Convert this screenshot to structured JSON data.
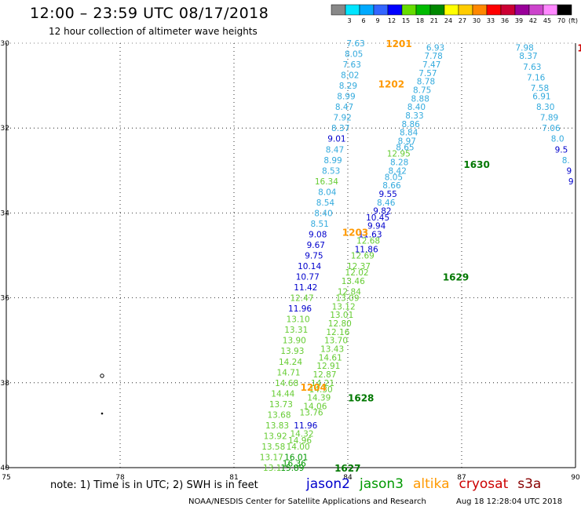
{
  "title": "12:00 – 23:59 UTC 08/17/2018",
  "subtitle": "12 hour collection of altimeter wave heights",
  "note": "note:  1) Time is in UTC;  2) SWH is in feet",
  "satellites": [
    {
      "name": "jason2",
      "color": "#0000cc"
    },
    {
      "name": "jason3",
      "color": "#009900"
    },
    {
      "name": "altika",
      "color": "#ff9900"
    },
    {
      "name": "cryosat",
      "color": "#cc0000"
    },
    {
      "name": "s3a",
      "color": "#880000"
    }
  ],
  "footer": "NOAA/NESDIS Center for Satellite Applications and Research",
  "footer_time": "Aug 18 12:28:04 UTC 2018",
  "scale": {
    "unit": "(ft)",
    "values": [
      "3",
      "6",
      "9",
      "12",
      "15",
      "18",
      "21",
      "24",
      "27",
      "30",
      "33",
      "36",
      "39",
      "42",
      "45",
      "70"
    ],
    "colors": [
      "#888888",
      "#00e5ff",
      "#00aaff",
      "#3366ff",
      "#0000ff",
      "#66dd00",
      "#00bb00",
      "#008800",
      "#ffff00",
      "#ffcc00",
      "#ff8800",
      "#ff0000",
      "#cc0033",
      "#990099",
      "#cc44cc",
      "#ff88ff",
      "#000000"
    ]
  },
  "axes": {
    "lat_labels": [
      "-30",
      "-32",
      "-34",
      "-36",
      "-38",
      "-40"
    ],
    "lon_labels": [
      "75",
      "78",
      "81",
      "84",
      "87",
      "90"
    ]
  },
  "color_key": {
    "lightblue": "#33aadd",
    "blue": "#0000cc",
    "lightgreen": "#66cc33",
    "green": "#009900",
    "orange": "#ff9900",
    "darkgreen": "#007700"
  },
  "tracks": [
    {
      "name": "track-1201-1204",
      "values": [
        {
          "v": "7.63",
          "lon": 84.45,
          "lat": -30.0,
          "c": "lightblue"
        },
        {
          "v": "8.05",
          "lon": 84.4,
          "lat": -30.25,
          "c": "lightblue"
        },
        {
          "v": "7.63",
          "lon": 84.35,
          "lat": -30.5,
          "c": "lightblue"
        },
        {
          "v": "8.02",
          "lon": 84.3,
          "lat": -30.75,
          "c": "lightblue"
        },
        {
          "v": "8.29",
          "lon": 84.25,
          "lat": -31.0,
          "c": "lightblue"
        },
        {
          "v": "8.99",
          "lon": 84.2,
          "lat": -31.25,
          "c": "lightblue"
        },
        {
          "v": "8.47",
          "lon": 84.15,
          "lat": -31.5,
          "c": "lightblue"
        },
        {
          "v": "7.92",
          "lon": 84.1,
          "lat": -31.75,
          "c": "lightblue"
        },
        {
          "v": "8.37",
          "lon": 84.05,
          "lat": -32.0,
          "c": "lightblue"
        },
        {
          "v": "9.01",
          "lon": 83.95,
          "lat": -32.25,
          "c": "blue"
        },
        {
          "v": "8.47",
          "lon": 83.9,
          "lat": -32.5,
          "c": "lightblue"
        },
        {
          "v": "8.99",
          "lon": 83.85,
          "lat": -32.75,
          "c": "lightblue"
        },
        {
          "v": "8.53",
          "lon": 83.8,
          "lat": -33.0,
          "c": "lightblue"
        },
        {
          "v": "16.34",
          "lon": 83.75,
          "lat": -33.25,
          "c": "lightgreen"
        },
        {
          "v": "8.04",
          "lon": 83.7,
          "lat": -33.5,
          "c": "lightblue"
        },
        {
          "v": "8.54",
          "lon": 83.65,
          "lat": -33.75,
          "c": "lightblue"
        },
        {
          "v": "8.40",
          "lon": 83.6,
          "lat": -34.0,
          "c": "lightblue"
        },
        {
          "v": "8.51",
          "lon": 83.5,
          "lat": -34.25,
          "c": "lightblue"
        },
        {
          "v": "9.08",
          "lon": 83.45,
          "lat": -34.5,
          "c": "blue"
        },
        {
          "v": "9.67",
          "lon": 83.4,
          "lat": -34.75,
          "c": "blue"
        },
        {
          "v": "9.75",
          "lon": 83.35,
          "lat": -35.0,
          "c": "blue"
        },
        {
          "v": "10.14",
          "lon": 83.3,
          "lat": -35.25,
          "c": "blue"
        },
        {
          "v": "10.77",
          "lon": 83.25,
          "lat": -35.5,
          "c": "blue"
        },
        {
          "v": "11.42",
          "lon": 83.2,
          "lat": -35.75,
          "c": "blue"
        },
        {
          "v": "12.47",
          "lon": 83.1,
          "lat": -36.0,
          "c": "lightgreen"
        },
        {
          "v": "11.96",
          "lon": 83.05,
          "lat": -36.25,
          "c": "blue"
        },
        {
          "v": "13.10",
          "lon": 83.0,
          "lat": -36.5,
          "c": "lightgreen"
        },
        {
          "v": "13.31",
          "lon": 82.95,
          "lat": -36.75,
          "c": "lightgreen"
        },
        {
          "v": "13.90",
          "lon": 82.9,
          "lat": -37.0,
          "c": "lightgreen"
        },
        {
          "v": "13.93",
          "lon": 82.85,
          "lat": -37.25,
          "c": "lightgreen"
        },
        {
          "v": "14.24",
          "lon": 82.8,
          "lat": -37.5,
          "c": "lightgreen"
        },
        {
          "v": "14.71",
          "lon": 82.75,
          "lat": -37.75,
          "c": "lightgreen"
        },
        {
          "v": "14.68",
          "lon": 82.7,
          "lat": -38.0,
          "c": "lightgreen"
        },
        {
          "v": "14.44",
          "lon": 82.6,
          "lat": -38.25,
          "c": "lightgreen"
        },
        {
          "v": "13.73",
          "lon": 82.55,
          "lat": -38.5,
          "c": "lightgreen"
        },
        {
          "v": "13.68",
          "lon": 82.5,
          "lat": -38.75,
          "c": "lightgreen"
        },
        {
          "v": "13.83",
          "lon": 82.45,
          "lat": -39.0,
          "c": "lightgreen"
        },
        {
          "v": "13.92",
          "lon": 82.4,
          "lat": -39.25,
          "c": "lightgreen"
        },
        {
          "v": "13.58",
          "lon": 82.35,
          "lat": -39.5,
          "c": "lightgreen"
        },
        {
          "v": "13.17",
          "lon": 82.3,
          "lat": -39.75,
          "c": "lightgreen"
        },
        {
          "v": "13.1",
          "lon": 82.25,
          "lat": -40.0,
          "c": "lightgreen"
        }
      ]
    },
    {
      "name": "track-1627-1630",
      "values": [
        {
          "v": "15.89",
          "lon": 82.85,
          "lat": -40.0,
          "c": "green"
        },
        {
          "v": "16.36",
          "lon": 82.9,
          "lat": -39.9,
          "c": "green"
        },
        {
          "v": "16.01",
          "lon": 82.95,
          "lat": -39.75,
          "c": "green"
        },
        {
          "v": "14.00",
          "lon": 83.0,
          "lat": -39.5,
          "c": "lightgreen"
        },
        {
          "v": "14.96",
          "lon": 83.05,
          "lat": -39.35,
          "c": "lightgreen"
        },
        {
          "v": "14.32",
          "lon": 83.1,
          "lat": -39.2,
          "c": "lightgreen"
        },
        {
          "v": "11.96",
          "lon": 83.2,
          "lat": -39.0,
          "c": "blue"
        },
        {
          "v": "13.76",
          "lon": 83.35,
          "lat": -38.7,
          "c": "lightgreen"
        },
        {
          "v": "14.06",
          "lon": 83.45,
          "lat": -38.55,
          "c": "lightgreen"
        },
        {
          "v": "14.39",
          "lon": 83.55,
          "lat": -38.35,
          "c": "lightgreen"
        },
        {
          "v": "14.30",
          "lon": 83.6,
          "lat": -38.15,
          "c": "lightgreen"
        },
        {
          "v": "14.21",
          "lon": 83.65,
          "lat": -38.0,
          "c": "lightgreen"
        },
        {
          "v": "12.87",
          "lon": 83.7,
          "lat": -37.8,
          "c": "lightgreen"
        },
        {
          "v": "12.91",
          "lon": 83.8,
          "lat": -37.6,
          "c": "lightgreen"
        },
        {
          "v": "14.61",
          "lon": 83.85,
          "lat": -37.4,
          "c": "lightgreen"
        },
        {
          "v": "13.43",
          "lon": 83.9,
          "lat": -37.2,
          "c": "lightgreen"
        },
        {
          "v": "13.70",
          "lon": 84.0,
          "lat": -37.0,
          "c": "lightgreen"
        },
        {
          "v": "12.16",
          "lon": 84.05,
          "lat": -36.8,
          "c": "lightgreen"
        },
        {
          "v": "12.80",
          "lon": 84.1,
          "lat": -36.6,
          "c": "lightgreen"
        },
        {
          "v": "13.01",
          "lon": 84.15,
          "lat": -36.4,
          "c": "lightgreen"
        },
        {
          "v": "13.12",
          "lon": 84.2,
          "lat": -36.2,
          "c": "lightgreen"
        },
        {
          "v": "13.09",
          "lon": 84.3,
          "lat": -36.0,
          "c": "lightgreen"
        },
        {
          "v": "12.84",
          "lon": 84.35,
          "lat": -35.85,
          "c": "lightgreen"
        },
        {
          "v": "13.46",
          "lon": 84.45,
          "lat": -35.6,
          "c": "lightgreen"
        },
        {
          "v": "12.02",
          "lon": 84.55,
          "lat": -35.4,
          "c": "lightgreen"
        },
        {
          "v": "12.37",
          "lon": 84.6,
          "lat": -35.25,
          "c": "lightgreen"
        },
        {
          "v": "12.69",
          "lon": 84.7,
          "lat": -35.0,
          "c": "lightgreen"
        },
        {
          "v": "11.86",
          "lon": 84.8,
          "lat": -34.85,
          "c": "blue"
        },
        {
          "v": "12.68",
          "lon": 84.85,
          "lat": -34.65,
          "c": "lightgreen"
        },
        {
          "v": "11.63",
          "lon": 84.9,
          "lat": -34.5,
          "c": "blue"
        },
        {
          "v": "9.94",
          "lon": 85.0,
          "lat": -34.3,
          "c": "blue"
        },
        {
          "v": "10.45",
          "lon": 85.1,
          "lat": -34.1,
          "c": "blue"
        },
        {
          "v": "9.82",
          "lon": 85.15,
          "lat": -33.95,
          "c": "blue"
        },
        {
          "v": "8.46",
          "lon": 85.25,
          "lat": -33.75,
          "c": "lightblue"
        },
        {
          "v": "9.55",
          "lon": 85.3,
          "lat": -33.55,
          "c": "blue"
        },
        {
          "v": "8.66",
          "lon": 85.4,
          "lat": -33.35,
          "c": "lightblue"
        },
        {
          "v": "8.05",
          "lon": 85.45,
          "lat": -33.15,
          "c": "lightblue"
        },
        {
          "v": "8.42",
          "lon": 85.55,
          "lat": -33.0,
          "c": "lightblue"
        },
        {
          "v": "8.28",
          "lon": 85.6,
          "lat": -32.8,
          "c": "lightblue"
        },
        {
          "v": "12.95",
          "lon": 85.65,
          "lat": -32.6,
          "c": "lightgreen"
        },
        {
          "v": "8.65",
          "lon": 85.75,
          "lat": -32.45,
          "c": "lightblue"
        },
        {
          "v": "8.97",
          "lon": 85.8,
          "lat": -32.3,
          "c": "lightblue"
        },
        {
          "v": "8.84",
          "lon": 85.85,
          "lat": -32.1,
          "c": "lightblue"
        },
        {
          "v": "8.86",
          "lon": 85.9,
          "lat": -31.9,
          "c": "lightblue"
        },
        {
          "v": "8.33",
          "lon": 86.0,
          "lat": -31.7,
          "c": "lightblue"
        },
        {
          "v": "8.40",
          "lon": 86.05,
          "lat": -31.5,
          "c": "lightblue"
        },
        {
          "v": "8.88",
          "lon": 86.15,
          "lat": -31.3,
          "c": "lightblue"
        },
        {
          "v": "8.75",
          "lon": 86.2,
          "lat": -31.1,
          "c": "lightblue"
        },
        {
          "v": "8.78",
          "lon": 86.3,
          "lat": -30.9,
          "c": "lightblue"
        },
        {
          "v": "7.57",
          "lon": 86.35,
          "lat": -30.7,
          "c": "lightblue"
        },
        {
          "v": "7.47",
          "lon": 86.45,
          "lat": -30.5,
          "c": "lightblue"
        },
        {
          "v": "7.78",
          "lon": 86.5,
          "lat": -30.3,
          "c": "lightblue"
        },
        {
          "v": "6.93",
          "lon": 86.55,
          "lat": -30.1,
          "c": "lightblue"
        }
      ]
    },
    {
      "name": "track-east",
      "values": [
        {
          "v": "7.98",
          "lon": 88.9,
          "lat": -30.1,
          "c": "lightblue"
        },
        {
          "v": "8.37",
          "lon": 89.0,
          "lat": -30.3,
          "c": "lightblue"
        },
        {
          "v": "7.63",
          "lon": 89.1,
          "lat": -30.55,
          "c": "lightblue"
        },
        {
          "v": "7.16",
          "lon": 89.2,
          "lat": -30.8,
          "c": "lightblue"
        },
        {
          "v": "7.58",
          "lon": 89.3,
          "lat": -31.05,
          "c": "lightblue"
        },
        {
          "v": "6.91",
          "lon": 89.35,
          "lat": -31.25,
          "c": "lightblue"
        },
        {
          "v": "8.30",
          "lon": 89.45,
          "lat": -31.5,
          "c": "lightblue"
        },
        {
          "v": "7.89",
          "lon": 89.55,
          "lat": -31.75,
          "c": "lightblue"
        },
        {
          "v": "7.06",
          "lon": 89.6,
          "lat": -32.0,
          "c": "lightblue"
        },
        {
          "v": "8.0",
          "lon": 89.7,
          "lat": -32.25,
          "c": "lightblue"
        },
        {
          "v": "9.5",
          "lon": 89.8,
          "lat": -32.5,
          "c": "blue"
        },
        {
          "v": "8.",
          "lon": 89.85,
          "lat": -32.75,
          "c": "lightblue"
        },
        {
          "v": "9",
          "lon": 89.9,
          "lat": -33.0,
          "c": "blue"
        },
        {
          "v": "9",
          "lon": 89.95,
          "lat": -33.25,
          "c": "blue"
        }
      ]
    }
  ],
  "time_labels": [
    {
      "v": "1201",
      "lon": 85.0,
      "lat": -30.0,
      "c": "orange"
    },
    {
      "v": "1202",
      "lon": 84.8,
      "lat": -30.95,
      "c": "orange"
    },
    {
      "v": "1203",
      "lon": 83.85,
      "lat": -34.45,
      "c": "orange"
    },
    {
      "v": "1204",
      "lon": 82.75,
      "lat": -38.1,
      "c": "orange"
    },
    {
      "v": "1630",
      "lon": 87.05,
      "lat": -32.85,
      "c": "darkgreen"
    },
    {
      "v": "1629",
      "lon": 86.5,
      "lat": -35.5,
      "c": "darkgreen"
    },
    {
      "v": "1628",
      "lon": 84.0,
      "lat": -38.35,
      "c": "darkgreen"
    },
    {
      "v": "1627",
      "lon": 83.65,
      "lat": -40.0,
      "c": "darkgreen"
    },
    {
      "v": "1",
      "lon": 90.05,
      "lat": -30.1,
      "c": "cryosat"
    }
  ]
}
